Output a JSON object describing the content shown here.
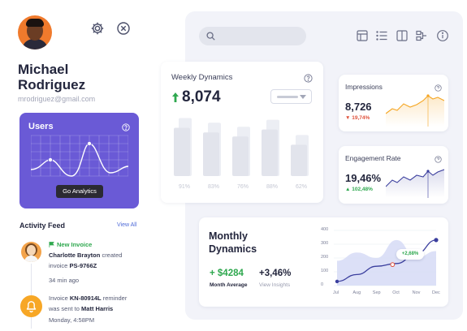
{
  "profile": {
    "name_line1": "Michael",
    "name_line2": "Rodriguez",
    "email": "mrodriguez@gmail.com"
  },
  "header_icons": [
    "gear-icon",
    "close-icon"
  ],
  "users_card": {
    "title": "Users",
    "button_label": "Go Analytics",
    "color": "#6a5ad6"
  },
  "activity_feed": {
    "title": "Activity Feed",
    "view_all": "View All",
    "items": [
      {
        "tag": "New Invoice",
        "person": "Charlotte Brayton",
        "text1": "created",
        "text2": "invoice",
        "invoice": "PS-9766Z",
        "time": "34  min ago"
      },
      {
        "text_prefix": "Invoice",
        "invoice": "KN-80914L",
        "text1": "reminder",
        "text2": "was sent to",
        "person": "Matt Harris",
        "time": "Monday, 4:58PM"
      }
    ]
  },
  "toolbar_icons": [
    "table-icon",
    "list-icon",
    "columns-icon",
    "flow-icon",
    "info-icon"
  ],
  "weekly_dynamics": {
    "title": "Weekly Dynamics",
    "value": "8,074",
    "bars": [
      {
        "label": "91%",
        "value": 91
      },
      {
        "label": "83%",
        "value": 83
      },
      {
        "label": "76%",
        "value": 76
      },
      {
        "label": "88%",
        "value": 88
      },
      {
        "label": "62%",
        "value": 62
      }
    ]
  },
  "impressions": {
    "title": "Impressions",
    "value": "8,726",
    "delta": "19,74%",
    "delta_color": "#e0533d",
    "line_color": "#f5a623"
  },
  "engagement": {
    "title": "Engagement Rate",
    "value": "19,46%",
    "delta": "102,48%",
    "delta_color": "#2fa84f",
    "line_color": "#3b3f9e"
  },
  "monthly_dynamics": {
    "title_line1": "Monthly",
    "title_line2": "Dynamics",
    "stat1_value": "+ $4284",
    "stat1_label": "Month Average",
    "stat2_value": "+3,46%",
    "stat2_label": "View Insights",
    "tooltip": "+2,68%"
  },
  "chart_data": {
    "type": "area",
    "title": "",
    "xlabel": "",
    "ylabel": "",
    "x": [
      "Jul",
      "Aug",
      "Sep",
      "Oct",
      "Nov",
      "Dec"
    ],
    "yticks": [
      "400",
      "300",
      "200",
      "100",
      "0"
    ],
    "ylim": [
      0,
      400
    ],
    "series": [
      {
        "values": [
          30,
          80,
          140,
          160,
          230,
          330
        ]
      },
      {
        "values": [
          180,
          240,
          200,
          330,
          200,
          250
        ]
      }
    ]
  }
}
